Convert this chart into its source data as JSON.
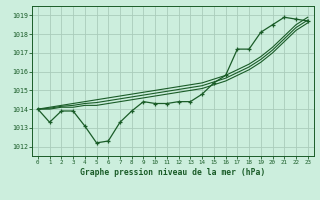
{
  "title": "Graphe pression niveau de la mer (hPa)",
  "xlabel_hours": [
    0,
    1,
    2,
    3,
    4,
    5,
    6,
    7,
    8,
    9,
    10,
    11,
    12,
    13,
    14,
    15,
    16,
    17,
    18,
    19,
    20,
    21,
    22,
    23
  ],
  "ylim": [
    1011.5,
    1019.5
  ],
  "yticks": [
    1012,
    1013,
    1014,
    1015,
    1016,
    1017,
    1018,
    1019
  ],
  "bg_color": "#cceedd",
  "grid_color": "#aaccbb",
  "line_color": "#1a5c28",
  "main_data": [
    1014.0,
    1013.3,
    1013.9,
    1013.9,
    1013.1,
    1012.2,
    1012.3,
    1013.3,
    1013.9,
    1014.4,
    1014.3,
    1014.3,
    1014.4,
    1014.4,
    1014.8,
    1015.4,
    1015.8,
    1017.2,
    1017.2,
    1018.1,
    1018.5,
    1018.9,
    1018.8,
    1018.7
  ],
  "line2_data": [
    1014.0,
    1014.0,
    1014.1,
    1014.1,
    1014.2,
    1014.2,
    1014.3,
    1014.4,
    1014.5,
    1014.6,
    1014.7,
    1014.8,
    1014.9,
    1015.0,
    1015.1,
    1015.3,
    1015.5,
    1015.8,
    1016.1,
    1016.5,
    1017.0,
    1017.6,
    1018.2,
    1018.6
  ],
  "line3_data": [
    1014.0,
    1014.05,
    1014.15,
    1014.2,
    1014.3,
    1014.35,
    1014.45,
    1014.55,
    1014.65,
    1014.75,
    1014.85,
    1014.95,
    1015.05,
    1015.15,
    1015.25,
    1015.45,
    1015.65,
    1015.95,
    1016.25,
    1016.65,
    1017.15,
    1017.75,
    1018.35,
    1018.75
  ],
  "line4_data": [
    1014.0,
    1014.1,
    1014.2,
    1014.3,
    1014.4,
    1014.5,
    1014.6,
    1014.7,
    1014.8,
    1014.9,
    1015.0,
    1015.1,
    1015.2,
    1015.3,
    1015.4,
    1015.6,
    1015.8,
    1016.1,
    1016.4,
    1016.8,
    1017.3,
    1017.9,
    1018.5,
    1018.9
  ]
}
